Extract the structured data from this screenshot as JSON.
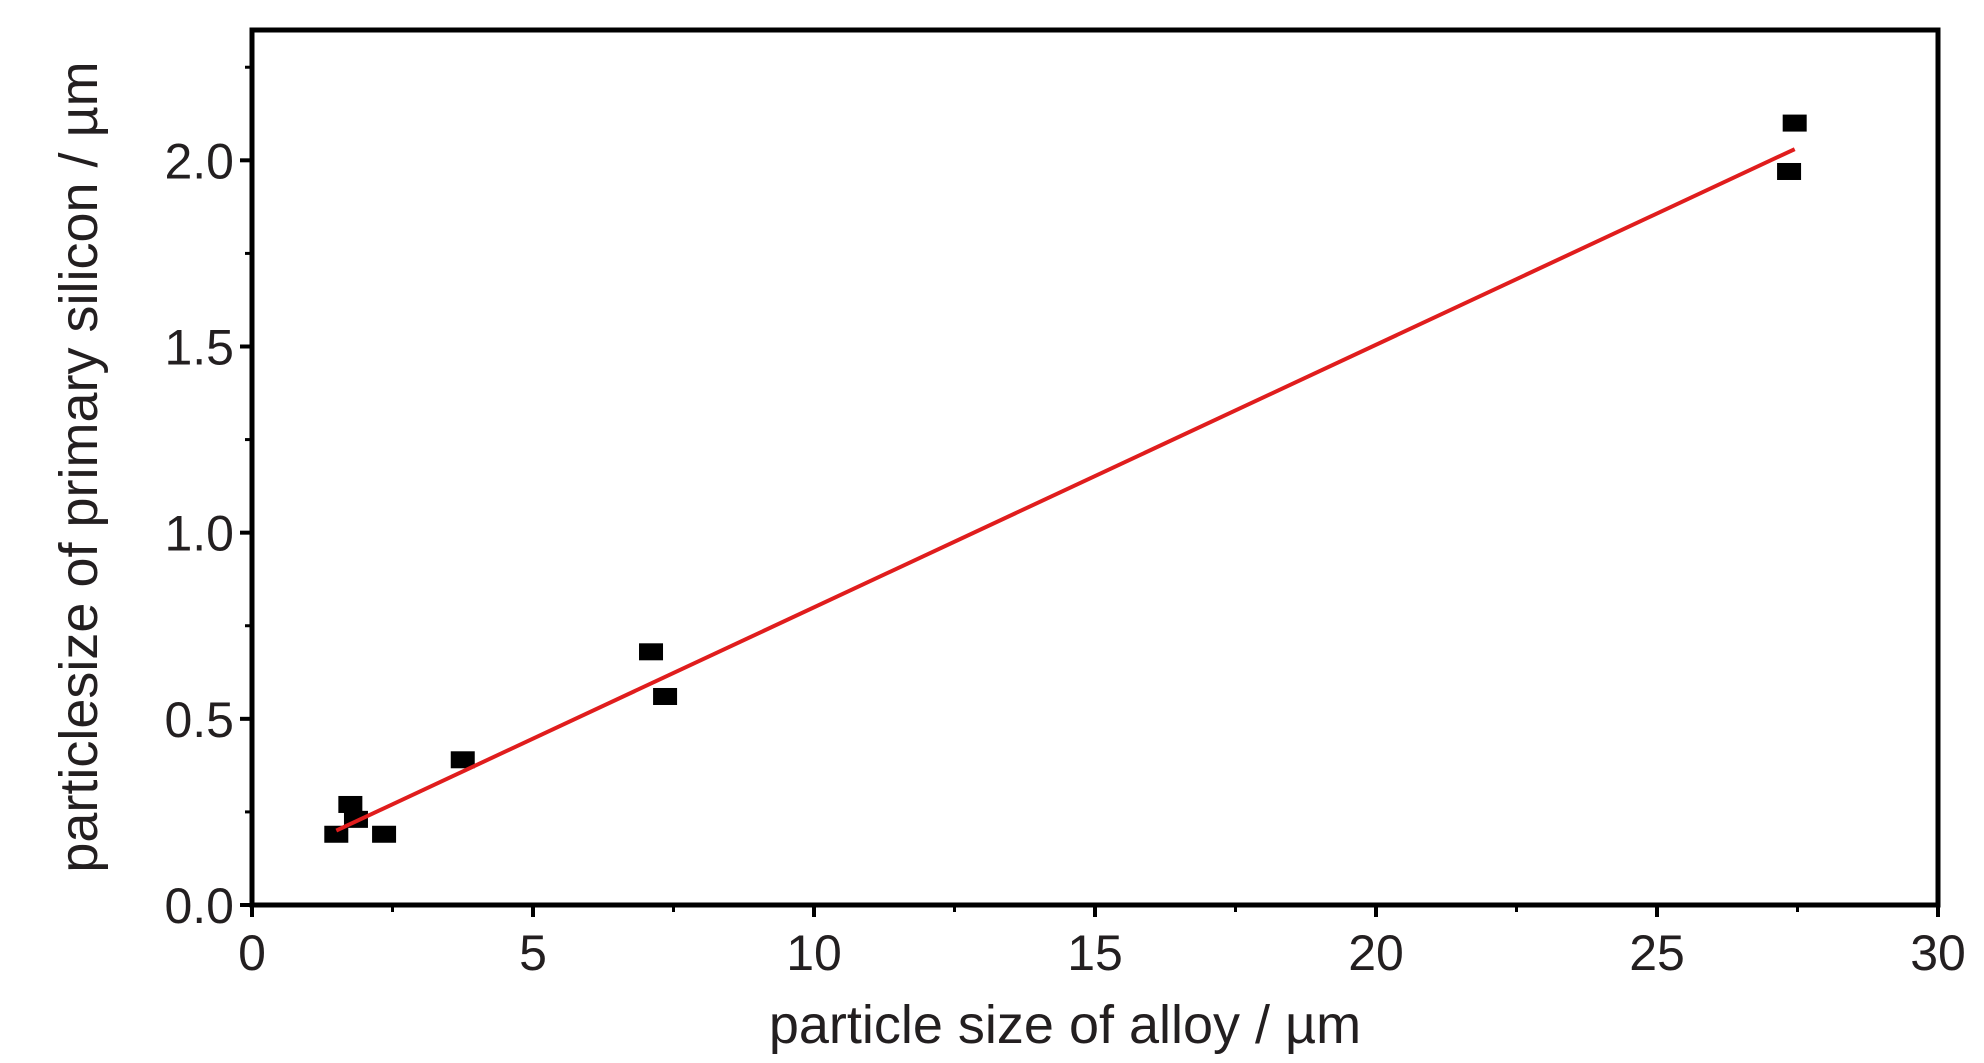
{
  "chart_data": {
    "type": "scatter",
    "title": "",
    "xlabel": "particle size of alloy / µm",
    "ylabel": "particlesize of primary silicon / µm",
    "xlim": [
      0,
      30
    ],
    "ylim": [
      0,
      2.35
    ],
    "x_ticks": [
      "0",
      "5",
      "10",
      "15",
      "20",
      "25",
      "30"
    ],
    "y_ticks": [
      "0.0",
      "0.5",
      "1.0",
      "1.5",
      "2.0"
    ],
    "grid": false,
    "legend": false,
    "points": [
      {
        "x": 1.5,
        "y": 0.19
      },
      {
        "x": 1.75,
        "y": 0.27
      },
      {
        "x": 1.85,
        "y": 0.23
      },
      {
        "x": 2.35,
        "y": 0.19
      },
      {
        "x": 3.75,
        "y": 0.39
      },
      {
        "x": 7.1,
        "y": 0.68
      },
      {
        "x": 7.35,
        "y": 0.56
      },
      {
        "x": 27.35,
        "y": 1.97
      },
      {
        "x": 27.45,
        "y": 2.1
      }
    ],
    "fit_line": {
      "x": [
        1.5,
        27.45
      ],
      "y": [
        0.2,
        2.03
      ]
    },
    "colors": {
      "points": "#000000",
      "fit_line": "#e01d1d",
      "axis": "#000000",
      "text": "#231f20"
    }
  }
}
